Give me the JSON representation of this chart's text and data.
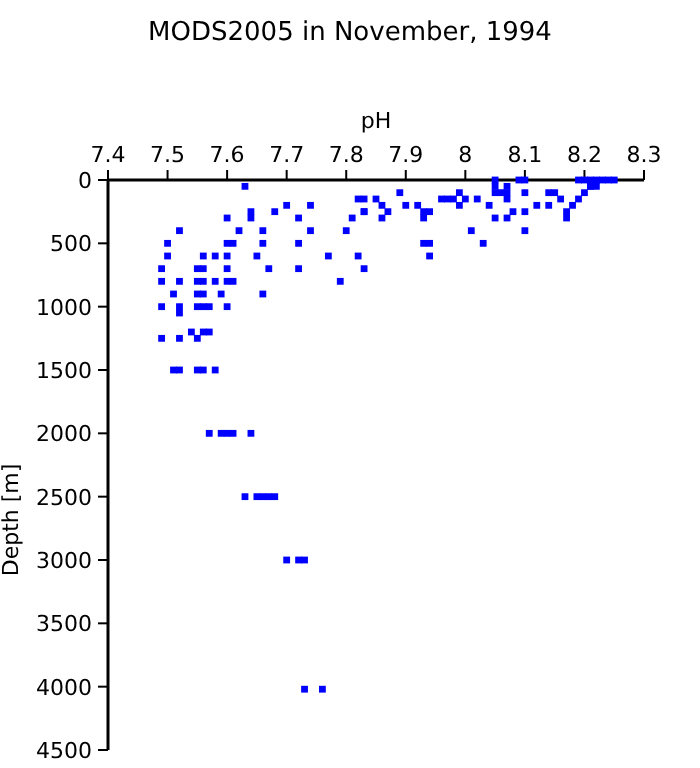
{
  "chart_data": {
    "type": "scatter",
    "title": "MODS2005 in November, 1994",
    "xlabel": "pH",
    "ylabel": "Depth [m]",
    "xlim": [
      7.4,
      8.3
    ],
    "xticks": [
      7.4,
      7.5,
      7.6,
      7.7,
      7.8,
      7.9,
      {
        "value": 8,
        "label": "8"
      },
      8.1,
      8.2,
      8.3
    ],
    "ylim": [
      4500,
      0
    ],
    "yticks": [
      0,
      500,
      1000,
      1500,
      2000,
      2500,
      3000,
      3500,
      4000,
      4500
    ],
    "grid": false,
    "marker": "square",
    "series": [
      {
        "color": "#0000ff",
        "x": [
          7.63,
          7.64,
          7.64,
          7.6,
          7.72,
          7.68,
          7.7,
          7.74,
          7.62,
          7.66,
          7.66,
          7.74,
          7.72,
          7.6,
          7.61,
          7.5,
          7.52,
          7.5,
          7.56,
          7.58,
          7.6,
          7.65,
          7.49,
          7.55,
          7.56,
          7.6,
          7.67,
          7.72,
          7.49,
          7.52,
          7.55,
          7.56,
          7.58,
          7.6,
          7.61,
          7.51,
          7.55,
          7.56,
          7.59,
          7.66,
          7.49,
          7.52,
          7.52,
          7.55,
          7.56,
          7.57,
          7.6,
          7.54,
          7.56,
          7.57,
          7.49,
          7.52,
          7.55,
          7.51,
          7.52,
          7.55,
          7.56,
          7.58,
          7.77,
          7.79,
          7.8,
          7.81,
          7.82,
          7.82,
          7.83,
          7.83,
          7.83,
          7.83,
          7.85,
          7.86,
          7.87,
          7.86,
          7.89,
          7.9,
          7.92,
          7.93,
          7.94,
          7.93,
          7.93,
          7.94,
          7.94,
          7.96,
          7.97,
          7.98,
          7.99,
          7.99,
          8.0,
          8.01,
          8.02,
          8.03,
          8.04,
          8.05,
          8.05,
          8.05,
          8.05,
          8.06,
          8.07,
          8.07,
          8.07,
          8.07,
          8.08,
          8.09,
          8.1,
          8.1,
          8.1,
          8.1,
          8.12,
          8.14,
          8.14,
          8.15,
          8.16,
          8.17,
          8.17,
          8.18,
          8.19,
          8.19,
          8.2,
          8.2,
          8.21,
          8.21,
          8.22,
          8.23,
          8.24,
          8.25,
          8.21,
          8.22,
          7.57,
          7.59,
          7.6,
          7.61,
          7.64,
          7.63,
          7.65,
          7.66,
          7.67,
          7.68,
          7.7,
          7.72,
          7.73,
          7.73,
          7.76
        ],
        "values": [
          50,
          250,
          300,
          300,
          300,
          250,
          200,
          200,
          400,
          400,
          500,
          400,
          500,
          500,
          500,
          500,
          400,
          600,
          600,
          600,
          600,
          600,
          700,
          700,
          700,
          700,
          700,
          700,
          800,
          800,
          800,
          800,
          800,
          800,
          800,
          900,
          900,
          900,
          900,
          900,
          1000,
          1000,
          1050,
          1000,
          1000,
          1000,
          1000,
          1200,
          1200,
          1200,
          1250,
          1250,
          1250,
          1500,
          1500,
          1500,
          1500,
          1500,
          600,
          800,
          400,
          300,
          150,
          600,
          250,
          150,
          250,
          700,
          150,
          200,
          250,
          300,
          100,
          200,
          200,
          250,
          250,
          300,
          500,
          500,
          600,
          150,
          150,
          150,
          100,
          200,
          150,
          400,
          150,
          500,
          200,
          0,
          50,
          100,
          300,
          100,
          100,
          300,
          50,
          150,
          250,
          0,
          0,
          100,
          250,
          400,
          200,
          200,
          100,
          100,
          150,
          250,
          300,
          200,
          0,
          150,
          0,
          100,
          50,
          50,
          0,
          0,
          0,
          0,
          0,
          50,
          2000,
          2000,
          2000,
          2000,
          2000,
          2500,
          2500,
          2500,
          2500,
          2500,
          3000,
          3000,
          3000,
          4020,
          4020
        ]
      }
    ]
  }
}
